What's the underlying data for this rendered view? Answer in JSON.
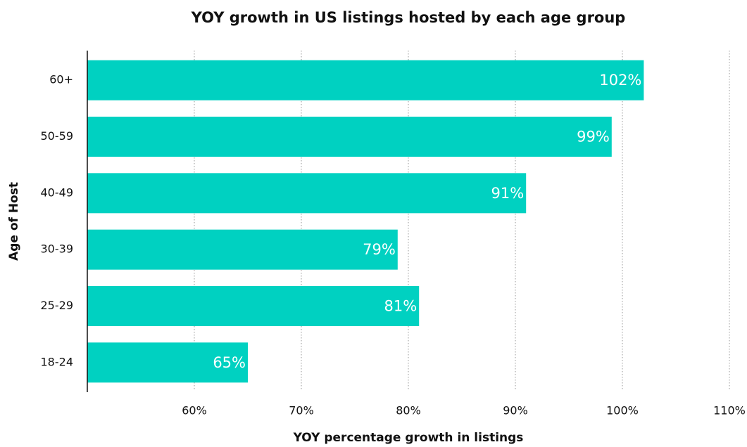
{
  "chart_data": {
    "type": "bar",
    "orientation": "horizontal",
    "title": "YOY growth in US listings hosted by each age group",
    "x_label": "YOY percentage growth in listings",
    "y_label": "Age of Host",
    "categories": [
      "60+",
      "50-59",
      "40-49",
      "30-39",
      "25-29",
      "18-24"
    ],
    "values": [
      102,
      99,
      91,
      79,
      81,
      65
    ],
    "value_labels": [
      "102%",
      "99%",
      "91%",
      "79%",
      "81%",
      "65%"
    ],
    "color": "#00d1c1",
    "xlim": [
      50,
      110
    ],
    "xticks": [
      {
        "value": 60,
        "label": "60%"
      },
      {
        "value": 70,
        "label": "70%"
      },
      {
        "value": 80,
        "label": "80%"
      },
      {
        "value": 90,
        "label": "90%"
      },
      {
        "value": 100,
        "label": "100%"
      },
      {
        "value": 110,
        "label": "110%"
      }
    ],
    "grid": true
  }
}
